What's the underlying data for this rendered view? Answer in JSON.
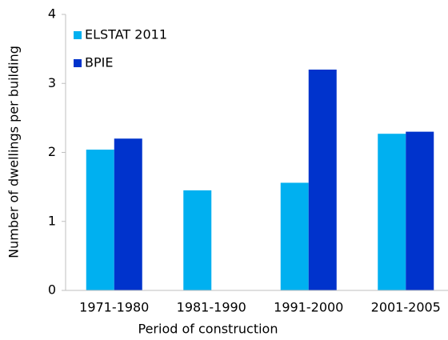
{
  "chart_data": {
    "type": "bar",
    "x_label": "Period of construction",
    "y_label": "Number of dwellings per building",
    "categories": [
      "1971-1980",
      "1981-1990",
      "1991-2000",
      "2001-2005"
    ],
    "series": [
      {
        "name": "ELSTAT 2011",
        "color": "#00b0f0",
        "values": [
          2.04,
          1.45,
          1.56,
          2.27
        ]
      },
      {
        "name": "BPIE",
        "color": "#0033cc",
        "values": [
          2.2,
          null,
          3.2,
          2.3
        ]
      }
    ],
    "ylim": [
      0,
      4
    ],
    "yticks": [
      0,
      1,
      2,
      3,
      4
    ],
    "grid": false,
    "legend": "upper-left"
  }
}
